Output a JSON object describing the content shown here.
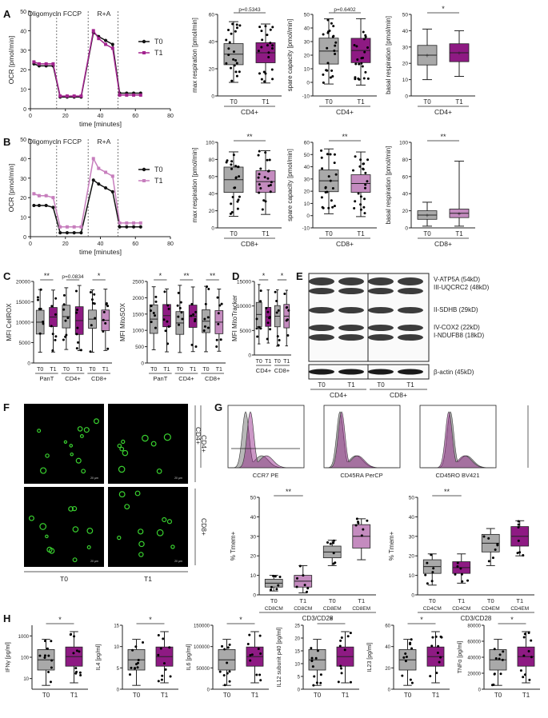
{
  "panel_letters": {
    "A": "A",
    "B": "B",
    "C": "C",
    "D": "D",
    "E": "E",
    "F": "F",
    "G": "G",
    "H": "H"
  },
  "colors": {
    "t0": "#111111",
    "t1": "#a2238e",
    "t1_light": "#c77ebd",
    "box_t0": "#a9a9a9",
    "box_t1_dark": "#8e1a83",
    "box_t1_light": "#c48bbf"
  },
  "ocr": {
    "annotations": [
      "Oligomycin",
      "FCCP",
      "R+A"
    ],
    "ylabel": "OCR [pmol/min]",
    "xlabel": "time  [minutes]",
    "x_ticks": [
      "0",
      "20",
      "40",
      "60",
      "80"
    ],
    "legend": [
      "T0",
      "T1"
    ]
  },
  "chart_data": [
    {
      "type": "line",
      "panel": "A",
      "title": "",
      "xlabel": "time  [minutes]",
      "ylabel": "OCR [pmol/min]",
      "ylim": [
        0,
        50
      ],
      "xlim": [
        0,
        80
      ],
      "y_ticks": [
        0,
        10,
        20,
        30,
        40,
        50
      ],
      "x": [
        2,
        5,
        9,
        13,
        17,
        21,
        25,
        29,
        36,
        39,
        43,
        47,
        51,
        55,
        59,
        63
      ],
      "series": [
        {
          "name": "T0",
          "values": [
            23,
            22,
            22,
            22,
            6,
            6,
            6,
            6,
            39,
            37,
            35,
            33,
            8,
            8,
            8,
            8
          ]
        },
        {
          "name": "T1",
          "values": [
            24,
            23,
            23,
            23,
            6.5,
            6.5,
            6.5,
            6.5,
            40,
            36,
            33,
            31,
            7,
            7,
            7,
            7
          ]
        }
      ]
    },
    {
      "type": "box",
      "panel": "A",
      "ylabel": "max respiration [pmol/min]",
      "categories": [
        "T0",
        "T1"
      ],
      "group": "CD4+",
      "annotation": "p=0.5343",
      "ylim": [
        0,
        60
      ],
      "y_ticks": [
        0,
        20,
        40,
        60
      ]
    },
    {
      "type": "box",
      "panel": "A",
      "ylabel": "spare capacity [pmol/min]",
      "categories": [
        "T0",
        "T1"
      ],
      "group": "CD4+",
      "annotation": "p=0.6402",
      "ylim": [
        -10,
        50
      ],
      "y_ticks": [
        -10,
        0,
        10,
        20,
        30,
        40,
        50
      ]
    },
    {
      "type": "box",
      "panel": "A",
      "ylabel": "basal respiration [pmol/min]",
      "categories": [
        "T0",
        "T1"
      ],
      "group": "CD4+",
      "annotation": "*",
      "ylim": [
        0,
        50
      ],
      "y_ticks": [
        0,
        10,
        20,
        30,
        40,
        50
      ]
    },
    {
      "type": "line",
      "panel": "B",
      "title": "",
      "xlabel": "time  [minutes]",
      "ylabel": "OCR [pmol/min]",
      "ylim": [
        0,
        50
      ],
      "xlim": [
        0,
        80
      ],
      "y_ticks": [
        0,
        10,
        20,
        30,
        40,
        50
      ],
      "x": [
        2,
        5,
        9,
        13,
        17,
        21,
        25,
        29,
        36,
        39,
        43,
        47,
        51,
        55,
        59,
        63
      ],
      "series": [
        {
          "name": "T0",
          "values": [
            16,
            16,
            16,
            15,
            2,
            2,
            2,
            2,
            29,
            27,
            25,
            23,
            5,
            5,
            5,
            5
          ]
        },
        {
          "name": "T1",
          "values": [
            22,
            21,
            21,
            20,
            5,
            5,
            5,
            5,
            40,
            35,
            33,
            31,
            7,
            7,
            7,
            7
          ]
        }
      ]
    },
    {
      "type": "box",
      "panel": "B",
      "ylabel": "max respiration [pmol/min]",
      "categories": [
        "T0",
        "T1"
      ],
      "group": "CD8+",
      "annotation": "**",
      "ylim": [
        0,
        100
      ],
      "y_ticks": [
        0,
        20,
        40,
        60,
        80,
        100
      ]
    },
    {
      "type": "box",
      "panel": "B",
      "ylabel": "spare capacity [pmol/min]",
      "categories": [
        "T0",
        "T1"
      ],
      "group": "CD8+",
      "annotation": "**",
      "ylim": [
        -10,
        60
      ],
      "y_ticks": [
        -10,
        0,
        10,
        20,
        30,
        40,
        50,
        60
      ]
    },
    {
      "type": "box",
      "panel": "B",
      "ylabel": "basal respiration [pmol/min]",
      "categories": [
        "T0",
        "T1"
      ],
      "group": "CD8+",
      "annotation": "**",
      "ylim": [
        0,
        100
      ],
      "y_ticks": [
        0,
        20,
        40,
        60,
        80,
        100
      ]
    },
    {
      "type": "box",
      "panel": "C",
      "ylabel": "MFI CellROX",
      "categories": [
        "T0",
        "T1",
        "T0",
        "T1",
        "T0",
        "T1"
      ],
      "groups": [
        "PanT",
        "CD4+",
        "CD8+"
      ],
      "annotations": [
        "**",
        "p=0.0834",
        "*"
      ],
      "ylim": [
        0,
        20000
      ],
      "y_ticks": [
        0,
        5000,
        10000,
        15000,
        20000
      ]
    },
    {
      "type": "box",
      "panel": "C",
      "ylabel": "MFI MitoSOX",
      "categories": [
        "T0",
        "T1",
        "T0",
        "T1",
        "T0",
        "T1"
      ],
      "groups": [
        "PanT",
        "CD4+",
        "CD8+"
      ],
      "annotations": [
        "*",
        "**",
        "**"
      ],
      "ylim": [
        0,
        2500
      ],
      "y_ticks": [
        0,
        500,
        1000,
        1500,
        2000,
        2500
      ]
    },
    {
      "type": "box",
      "panel": "D",
      "ylabel": "MFI MitoTracker",
      "categories": [
        "T0",
        "T1",
        "T0",
        "T1"
      ],
      "groups": [
        "CD4+",
        "CD8+"
      ],
      "annotations": [
        "*",
        "*"
      ],
      "ylim": [
        0,
        15000
      ],
      "y_ticks": [
        0,
        5000,
        10000,
        15000
      ]
    },
    {
      "type": "box",
      "panel": "G",
      "ylabel": "% Tmem+",
      "categories": [
        "CD8CM",
        "CD8CM",
        "CD8EM",
        "CD8EM"
      ],
      "timepoints": [
        "T0",
        "T1",
        "T0",
        "T1"
      ],
      "xlabel": "CD3/CD28",
      "annotation": "**",
      "ylim": [
        0,
        50
      ],
      "y_ticks": [
        0,
        10,
        20,
        30,
        40,
        50
      ]
    },
    {
      "type": "box",
      "panel": "G",
      "ylabel": "% Tmem+",
      "categories": [
        "CD4CM",
        "CD4CM",
        "CD4EM",
        "CD4EM"
      ],
      "timepoints": [
        "T0",
        "T1",
        "T0",
        "T1"
      ],
      "xlabel": "CD3/CD28",
      "annotation": "**",
      "ylim": [
        0,
        50
      ],
      "y_ticks": [
        0,
        10,
        20,
        30,
        40,
        50
      ]
    },
    {
      "type": "box",
      "panel": "H",
      "ylabel": "IFNγ [pg/ml]",
      "categories": [
        "T0",
        "T1"
      ],
      "annotation": "*",
      "scale": "log",
      "y_ticks": [
        "10",
        "100",
        "1000"
      ]
    },
    {
      "type": "box",
      "panel": "H",
      "ylabel": "IL4 [pg/ml]",
      "categories": [
        "T0",
        "T1"
      ],
      "annotation": "*",
      "ylim": [
        0,
        15
      ],
      "y_ticks": [
        0,
        5,
        10,
        15
      ]
    },
    {
      "type": "box",
      "panel": "H",
      "ylabel": "IL6 [pg/ml]",
      "categories": [
        "T0",
        "T1"
      ],
      "annotation": "*",
      "ylim": [
        0,
        150000
      ],
      "y_ticks": [
        0,
        50000,
        100000,
        150000
      ]
    },
    {
      "type": "box",
      "panel": "H",
      "ylabel": "IL12 subunit p40 [pg/ml]",
      "categories": [
        "T0",
        "T1"
      ],
      "annotation": "*",
      "ylim": [
        0,
        25
      ],
      "y_ticks": [
        0,
        5,
        10,
        15,
        20,
        25
      ]
    },
    {
      "type": "box",
      "panel": "H",
      "ylabel": "IL23 [pg/ml]",
      "categories": [
        "T0",
        "T1"
      ],
      "annotation": "*",
      "ylim": [
        0,
        60
      ],
      "y_ticks": [
        0,
        20,
        40,
        60
      ]
    },
    {
      "type": "box",
      "panel": "H",
      "ylabel": "TNFα [pg/ml]",
      "categories": [
        "T0",
        "T1"
      ],
      "annotation": "*",
      "ylim": [
        0,
        80000
      ],
      "y_ticks": [
        0,
        20000,
        40000,
        60000,
        80000
      ]
    }
  ],
  "blot": {
    "labels": [
      "V-ATP5A (54kD)",
      "III-UQCRC2 (48kD)",
      "II-SDHB (29kD)",
      "IV-COX2 (22kD)",
      "I-NDUFB8 (18kD)",
      "β-actin (45kD)"
    ],
    "lanes": [
      "T0",
      "T1",
      "T0",
      "T1"
    ],
    "groups": [
      "CD4+",
      "CD8+"
    ]
  },
  "micro": {
    "row_labels": [
      "CD4+",
      "CD8+"
    ],
    "col_labels": [
      "T0",
      "T1"
    ],
    "scale_text": "20 µm"
  },
  "flow": {
    "xlabels": [
      "CCR7 PE",
      "CD45RA PerCP",
      "CD45RO BV421"
    ],
    "row_label": "CD4+",
    "row_label_cd8": "CD8+"
  }
}
